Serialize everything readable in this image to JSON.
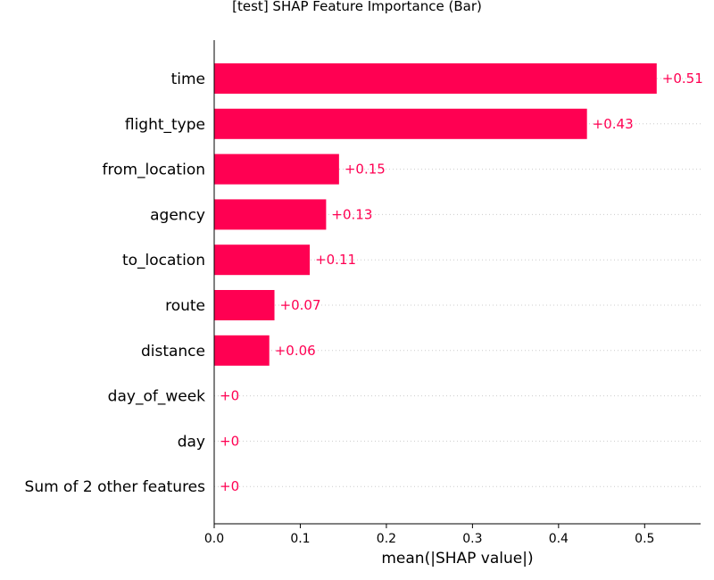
{
  "chart_data": {
    "type": "bar",
    "orientation": "horizontal",
    "title": "[test] SHAP Feature Importance (Bar)",
    "xlabel": "mean(|SHAP value|)",
    "ylabel": "",
    "xlim": [
      0,
      0.565
    ],
    "xticks": [
      "0.0",
      "0.1",
      "0.2",
      "0.3",
      "0.4",
      "0.5"
    ],
    "categories": [
      "time",
      "flight_type",
      "from_location",
      "agency",
      "to_location",
      "route",
      "distance",
      "day_of_week",
      "day",
      "Sum of 2 other features"
    ],
    "values": [
      0.514,
      0.433,
      0.145,
      0.13,
      0.111,
      0.07,
      0.064,
      0.0,
      0.0,
      0.0
    ],
    "value_labels": [
      "+0.51",
      "+0.43",
      "+0.15",
      "+0.13",
      "+0.11",
      "+0.07",
      "+0.06",
      "+0",
      "+0",
      "+0"
    ],
    "bar_color": "#ff0052",
    "grid": "horizontal dotted guide lines per feature",
    "legend": "none"
  }
}
